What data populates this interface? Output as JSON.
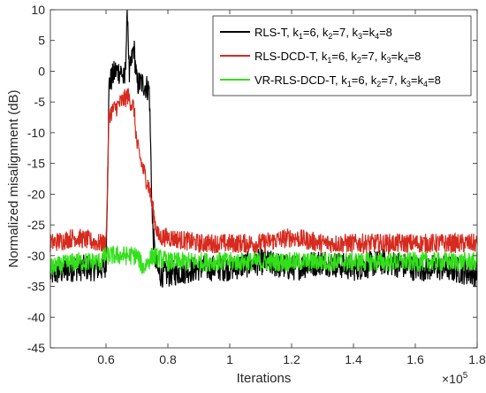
{
  "chart_data": {
    "type": "line",
    "title": "",
    "xlabel": "Iterations",
    "ylabel": "Normalized misalignment (dB)",
    "x_exponent_label": "×10",
    "x_exponent_power": "5",
    "xlim": [
      0.42,
      1.8
    ],
    "ylim": [
      -45,
      10
    ],
    "x_ticks": [
      0.6,
      0.8,
      1,
      1.2,
      1.4,
      1.6,
      1.8
    ],
    "x_tick_labels": [
      "0.6",
      "0.8",
      "1",
      "1.2",
      "1.4",
      "1.6",
      "1.8"
    ],
    "y_ticks": [
      -45,
      -40,
      -35,
      -30,
      -25,
      -20,
      -15,
      -10,
      -5,
      0,
      5,
      10
    ],
    "y_tick_labels": [
      "-45",
      "-40",
      "-35",
      "-30",
      "-25",
      "-20",
      "-15",
      "-10",
      "-5",
      "0",
      "5",
      "10"
    ],
    "grid": false,
    "legend_position": "top-right",
    "series": [
      {
        "name": "RLS-T",
        "legend_parts": [
          "RLS-T, k",
          "1",
          "=6, k",
          "2",
          "=7, k",
          "3",
          "=k",
          "4",
          "=8"
        ],
        "color": "#000000",
        "x": [
          0.42,
          0.5,
          0.58,
          0.6,
          0.61,
          0.63,
          0.65,
          0.66,
          0.67,
          0.675,
          0.69,
          0.7,
          0.72,
          0.74,
          0.75,
          0.76,
          0.77,
          0.8,
          0.9,
          1.0,
          1.1,
          1.2,
          1.3,
          1.4,
          1.5,
          1.6,
          1.7,
          1.8
        ],
        "y": [
          -33,
          -32,
          -32,
          -32,
          -2,
          0,
          0,
          -2,
          10,
          -1,
          4,
          -2,
          -2,
          -3,
          -25,
          -31,
          -33,
          -33,
          -32,
          -32,
          -31,
          -32,
          -31,
          -32,
          -31,
          -32,
          -32,
          -33
        ]
      },
      {
        "name": "RLS-DCD-T",
        "legend_parts": [
          "RLS-DCD-T, k",
          "1",
          "=6, k",
          "2",
          "=7, k",
          "3",
          "=k",
          "4",
          "=8"
        ],
        "color": "#d62a1e",
        "x": [
          0.42,
          0.5,
          0.58,
          0.6,
          0.61,
          0.63,
          0.65,
          0.67,
          0.69,
          0.7,
          0.72,
          0.74,
          0.75,
          0.76,
          0.77,
          0.8,
          0.9,
          1.0,
          1.1,
          1.2,
          1.3,
          1.4,
          1.5,
          1.6,
          1.7,
          1.8
        ],
        "y": [
          -28,
          -27,
          -28,
          -28,
          -7,
          -6,
          -5,
          -4,
          -6,
          -12,
          -16,
          -19,
          -22,
          -25,
          -27,
          -27,
          -28,
          -28,
          -28,
          -27,
          -28,
          -28,
          -28,
          -28,
          -28,
          -28
        ]
      },
      {
        "name": "VR-RLS-DCD-T",
        "legend_parts": [
          "VR-RLS-DCD-T, k",
          "1",
          "=6, k",
          "2",
          "=7, k",
          "3",
          "=k",
          "4",
          "=8"
        ],
        "color": "#33e01a",
        "x": [
          0.42,
          0.5,
          0.58,
          0.6,
          0.65,
          0.7,
          0.72,
          0.75,
          0.8,
          0.9,
          1.0,
          1.1,
          1.2,
          1.3,
          1.4,
          1.5,
          1.6,
          1.7,
          1.8
        ],
        "y": [
          -32,
          -31,
          -31,
          -30,
          -30,
          -30,
          -32,
          -30,
          -31,
          -31,
          -31,
          -31,
          -31,
          -31,
          -31,
          -31,
          -31,
          -31,
          -31
        ]
      }
    ]
  }
}
